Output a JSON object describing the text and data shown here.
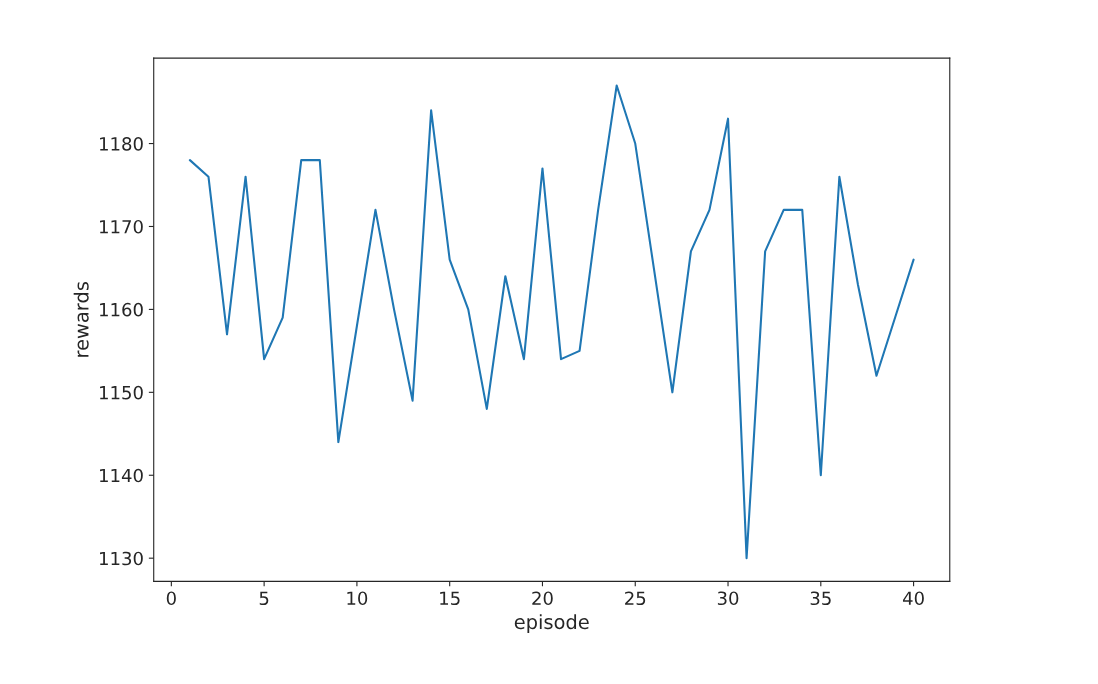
{
  "chart_data": {
    "type": "line",
    "xlabel": "episode",
    "ylabel": "rewards",
    "x": [
      1,
      2,
      3,
      4,
      5,
      6,
      7,
      8,
      9,
      10,
      11,
      12,
      13,
      14,
      15,
      16,
      17,
      18,
      19,
      20,
      21,
      22,
      23,
      24,
      25,
      26,
      27,
      28,
      29,
      30,
      31,
      32,
      33,
      34,
      35,
      36,
      37,
      38,
      39,
      40
    ],
    "series": [
      {
        "color": "#1f77b4",
        "values": [
          1178,
          1176,
          1157,
          1176,
          1154,
          1159,
          1178,
          1178,
          1144,
          1158,
          1172,
          1160,
          1149,
          1184,
          1166,
          1160,
          1148,
          1164,
          1154,
          1177,
          1154,
          1155,
          1172,
          1187,
          1180,
          1165,
          1150,
          1167,
          1172,
          1183,
          1130,
          1167,
          1172,
          1172,
          1140,
          1176,
          1163,
          1152,
          1159,
          1166
        ]
      }
    ],
    "xlim": [
      -0.95,
      41.95
    ],
    "ylim": [
      1127.2,
      1190.3
    ],
    "xticks": [
      0,
      5,
      10,
      15,
      20,
      25,
      30,
      35,
      40
    ],
    "yticks": [
      1130,
      1140,
      1150,
      1160,
      1170,
      1180
    ],
    "grid": false,
    "marker": "none",
    "line_style": "solid"
  }
}
